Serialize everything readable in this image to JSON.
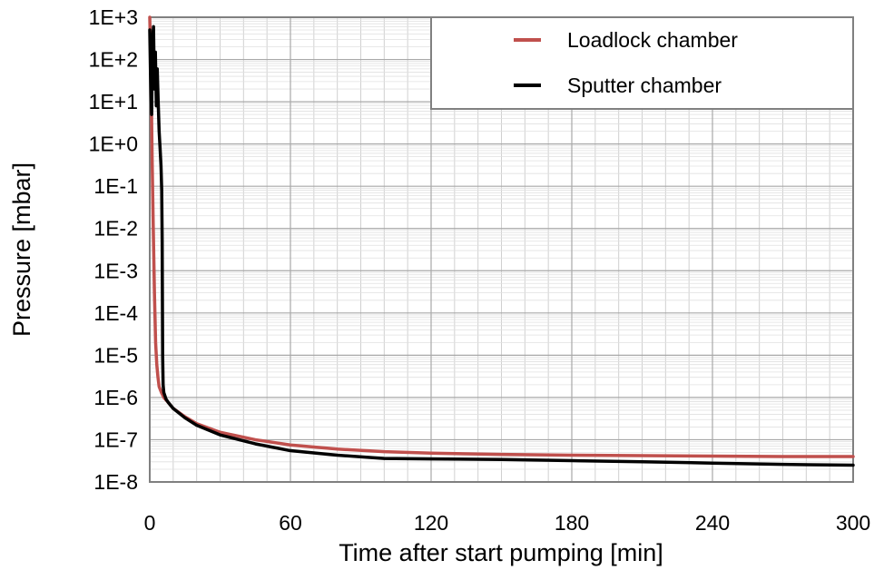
{
  "chart_data": {
    "type": "line",
    "xlabel": "Time after start pumping [min]",
    "ylabel": "Pressure [mbar]",
    "xlim": [
      0,
      300
    ],
    "ylim": [
      1e-08,
      1000
    ],
    "y_scale": "log",
    "x_ticks": [
      0,
      60,
      120,
      180,
      240,
      300
    ],
    "x_tick_labels": [
      "0",
      "60",
      "120",
      "180",
      "240",
      "300"
    ],
    "y_ticks": [
      1e-08,
      1e-07,
      1e-06,
      1e-05,
      0.0001,
      0.001,
      0.01,
      0.1,
      1,
      10,
      100,
      1000
    ],
    "y_tick_labels": [
      "1E-8",
      "1E-7",
      "1E-6",
      "1E-5",
      "1E-4",
      "1E-3",
      "1E-2",
      "1E-1",
      "1E+0",
      "1E+1",
      "1E+2",
      "1E+3"
    ],
    "grid": true,
    "legend_position": "top-right",
    "series": [
      {
        "name": "Loadlock chamber",
        "color": "#c0504d",
        "x": [
          0,
          0.3,
          0.7,
          1.0,
          1.5,
          2.0,
          2.5,
          3.0,
          3.5,
          4.0,
          5,
          6,
          8,
          10,
          15,
          20,
          30,
          45,
          60,
          80,
          100,
          120,
          150,
          180,
          210,
          240,
          270,
          300
        ],
        "y": [
          1000,
          200,
          10,
          0.5,
          0.01,
          0.0003,
          2e-05,
          6e-06,
          3e-06,
          1.8e-06,
          1.3e-06,
          1e-06,
          7.5e-07,
          5.5e-07,
          3.5e-07,
          2.4e-07,
          1.5e-07,
          1e-07,
          7.5e-08,
          6e-08,
          5.2e-08,
          4.8e-08,
          4.5e-08,
          4.3e-08,
          4.2e-08,
          4.1e-08,
          4e-08,
          4e-08
        ]
      },
      {
        "name": "Sputter chamber",
        "color": "#000000",
        "x": [
          0,
          0.3,
          0.8,
          1.2,
          1.6,
          2.0,
          2.4,
          2.8,
          3.2,
          3.6,
          4.0,
          4.4,
          4.8,
          5.1,
          5.3,
          5.5,
          5.7,
          6.0,
          7,
          8,
          10,
          15,
          20,
          30,
          45,
          60,
          80,
          100,
          120,
          150,
          180,
          210,
          240,
          270,
          300
        ],
        "y": [
          500,
          50,
          5,
          300,
          600,
          20,
          150,
          8,
          60,
          10,
          2,
          0.8,
          0.3,
          0.08,
          0.005,
          1e-05,
          2e-06,
          1.3e-06,
          9e-07,
          7.5e-07,
          5.5e-07,
          3.3e-07,
          2.2e-07,
          1.3e-07,
          8e-08,
          5.5e-08,
          4.3e-08,
          3.6e-08,
          3.5e-08,
          3.4e-08,
          3.2e-08,
          3e-08,
          2.8e-08,
          2.6e-08,
          2.5e-08
        ]
      }
    ]
  }
}
